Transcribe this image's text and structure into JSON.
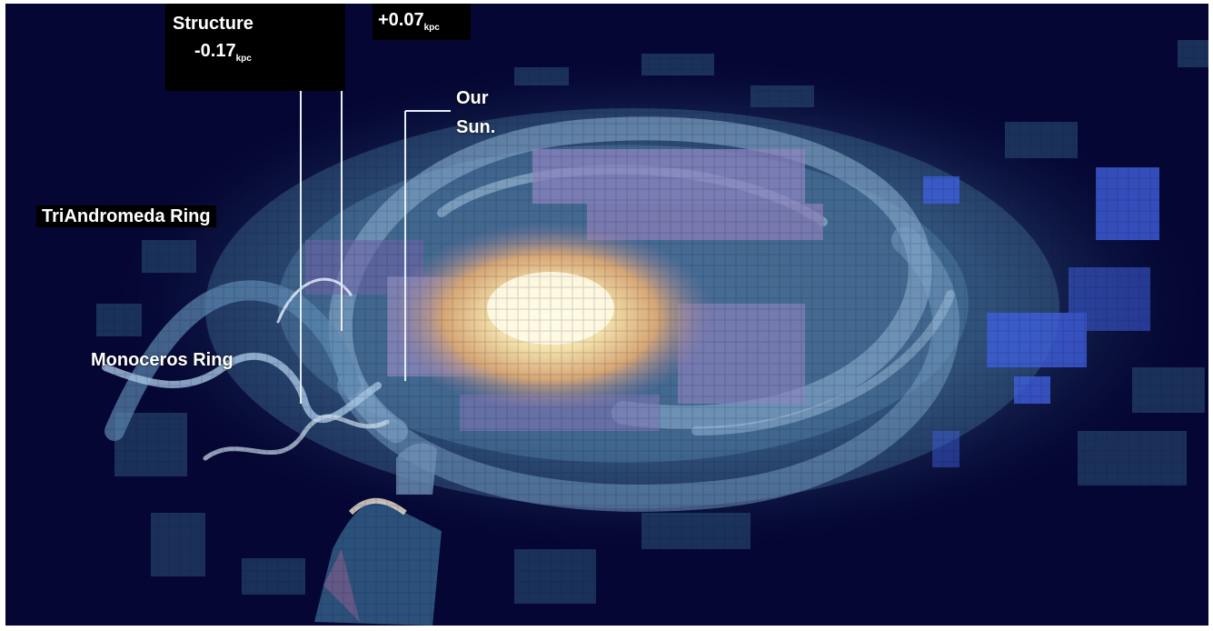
{
  "labels": {
    "structure_title": "Structure",
    "structure_value": "-0.17",
    "structure_unit": "kpc",
    "right_value": "+0.07",
    "right_unit": "kpc",
    "our": "Our",
    "sun": "Sun.",
    "triandromeda": "TriAndromeda Ring",
    "monoceros": "Monoceros Ring"
  },
  "colors": {
    "background": "#050633",
    "galaxy_arms": "#4d7fa6",
    "core": "#f4e6b8",
    "purple_band": "#8e84c0",
    "blue_patches": "#3c5bd8"
  }
}
